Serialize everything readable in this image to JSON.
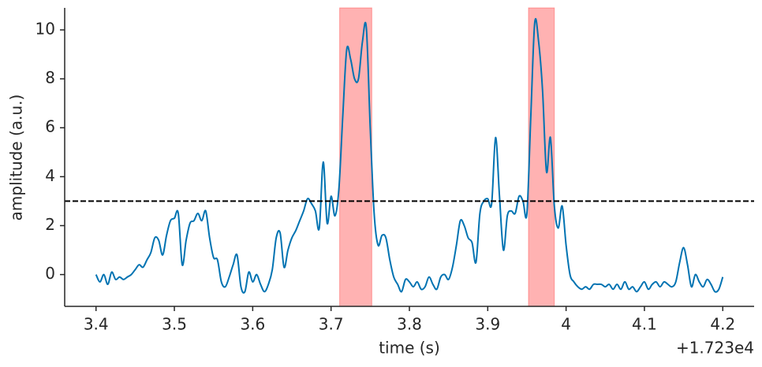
{
  "chart_data": {
    "type": "line",
    "xlabel": "time (s)",
    "ylabel": "amplitude (a.u.)",
    "x_offset_label": "+1.723e4",
    "xlim": [
      3.36,
      4.24
    ],
    "ylim": [
      -1.3,
      10.9
    ],
    "xticks": [
      3.4,
      3.5,
      3.6,
      3.7,
      3.8,
      3.9,
      4.0,
      4.1,
      4.2
    ],
    "yticks": [
      0,
      2,
      4,
      6,
      8,
      10
    ],
    "threshold": 3,
    "threshold_color": "#000000",
    "spans": [
      [
        3.711,
        3.752
      ],
      [
        3.952,
        3.985
      ]
    ],
    "span_color": "#ff0000",
    "x": [
      3.4,
      3.405,
      3.41,
      3.415,
      3.42,
      3.425,
      3.43,
      3.435,
      3.44,
      3.445,
      3.45,
      3.455,
      3.46,
      3.465,
      3.47,
      3.475,
      3.48,
      3.485,
      3.49,
      3.495,
      3.5,
      3.505,
      3.51,
      3.515,
      3.52,
      3.525,
      3.53,
      3.535,
      3.54,
      3.545,
      3.55,
      3.555,
      3.56,
      3.565,
      3.57,
      3.575,
      3.58,
      3.585,
      3.59,
      3.595,
      3.6,
      3.605,
      3.61,
      3.615,
      3.62,
      3.625,
      3.63,
      3.635,
      3.64,
      3.645,
      3.65,
      3.655,
      3.66,
      3.665,
      3.67,
      3.675,
      3.68,
      3.685,
      3.69,
      3.695,
      3.7,
      3.705,
      3.71,
      3.715,
      3.72,
      3.725,
      3.73,
      3.735,
      3.74,
      3.745,
      3.75,
      3.755,
      3.76,
      3.765,
      3.77,
      3.775,
      3.78,
      3.785,
      3.79,
      3.795,
      3.8,
      3.805,
      3.81,
      3.815,
      3.82,
      3.825,
      3.83,
      3.835,
      3.84,
      3.845,
      3.85,
      3.855,
      3.86,
      3.865,
      3.87,
      3.875,
      3.88,
      3.885,
      3.89,
      3.895,
      3.9,
      3.905,
      3.91,
      3.915,
      3.92,
      3.925,
      3.93,
      3.935,
      3.94,
      3.945,
      3.95,
      3.955,
      3.96,
      3.965,
      3.97,
      3.975,
      3.98,
      3.985,
      3.99,
      3.995,
      4.0,
      4.005,
      4.01,
      4.015,
      4.02,
      4.025,
      4.03,
      4.035,
      4.04,
      4.045,
      4.05,
      4.055,
      4.06,
      4.065,
      4.07,
      4.075,
      4.08,
      4.085,
      4.09,
      4.095,
      4.1,
      4.105,
      4.11,
      4.115,
      4.12,
      4.125,
      4.13,
      4.135,
      4.14,
      4.145,
      4.15,
      4.155,
      4.16,
      4.165,
      4.17,
      4.175,
      4.18,
      4.185,
      4.19,
      4.195,
      4.2
    ],
    "series": [
      {
        "color": "#0173b2",
        "values": [
          0.0,
          -0.3,
          0.0,
          -0.4,
          0.1,
          -0.2,
          -0.1,
          -0.2,
          -0.1,
          0.0,
          0.2,
          0.4,
          0.3,
          0.6,
          0.9,
          1.5,
          1.4,
          0.8,
          1.6,
          2.2,
          2.3,
          2.5,
          0.4,
          1.4,
          2.1,
          2.2,
          2.5,
          2.2,
          2.6,
          1.5,
          0.7,
          0.6,
          -0.3,
          -0.5,
          -0.1,
          0.4,
          0.8,
          -0.5,
          -0.7,
          0.1,
          -0.3,
          0.0,
          -0.4,
          -0.7,
          -0.4,
          0.2,
          1.5,
          1.7,
          0.3,
          1.0,
          1.5,
          1.8,
          2.2,
          2.6,
          3.1,
          2.9,
          2.6,
          1.9,
          4.6,
          2.1,
          3.2,
          2.4,
          3.5,
          6.5,
          9.2,
          8.8,
          8.0,
          8.0,
          9.5,
          10.1,
          6.0,
          2.5,
          1.2,
          1.6,
          1.5,
          0.6,
          -0.1,
          -0.4,
          -0.7,
          -0.2,
          -0.3,
          -0.5,
          -0.3,
          -0.6,
          -0.5,
          -0.1,
          -0.4,
          -0.6,
          -0.1,
          0.0,
          -0.2,
          0.3,
          1.2,
          2.2,
          2.0,
          1.5,
          1.3,
          0.5,
          2.5,
          3.0,
          3.1,
          2.9,
          5.6,
          3.2,
          1.0,
          2.4,
          2.6,
          2.5,
          3.2,
          3.0,
          2.5,
          6.5,
          10.3,
          9.5,
          7.5,
          4.2,
          5.6,
          2.8,
          1.9,
          2.8,
          1.2,
          0.0,
          -0.3,
          -0.5,
          -0.6,
          -0.5,
          -0.6,
          -0.4,
          -0.4,
          -0.4,
          -0.5,
          -0.4,
          -0.6,
          -0.4,
          -0.6,
          -0.3,
          -0.6,
          -0.5,
          -0.7,
          -0.5,
          -0.3,
          -0.6,
          -0.4,
          -0.3,
          -0.5,
          -0.3,
          -0.4,
          -0.5,
          -0.3,
          0.5,
          1.1,
          0.4,
          -0.5,
          0.0,
          -0.3,
          -0.5,
          -0.2,
          -0.4,
          -0.7,
          -0.6,
          -0.1
        ]
      }
    ]
  }
}
